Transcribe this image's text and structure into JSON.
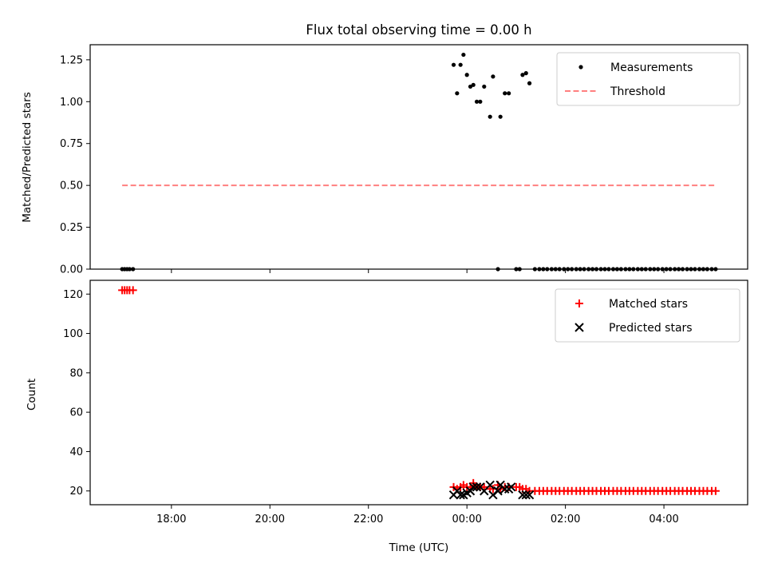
{
  "title": "Flux total observing time = 0.00 h",
  "xlabel": "Time (UTC)",
  "top_ylabel": "Matched/Predicted stars",
  "bottom_ylabel": "Count",
  "chart_data": [
    {
      "type": "scatter",
      "title": "Flux total observing time = 0.00 h",
      "xlabel": "",
      "ylabel": "Matched/Predicted stars",
      "x_unit": "hours (UTC), values >24 are after midnight",
      "xlim": [
        16.35,
        29.7
      ],
      "ylim": [
        0,
        1.34
      ],
      "xticks": [
        18,
        20,
        22,
        24,
        26,
        28
      ],
      "xtick_labels": [
        "18:00",
        "20:00",
        "22:00",
        "00:00",
        "02:00",
        "04:00"
      ],
      "yticks": [
        0,
        0.25,
        0.5,
        0.75,
        1.0,
        1.25
      ],
      "ytick_labels": [
        "0.00",
        "0.25",
        "0.50",
        "0.75",
        "1.00",
        "1.25"
      ],
      "legend_position": "top-right",
      "series": [
        {
          "name": "Measurements",
          "color": "#000000",
          "marker": "dot",
          "points": [
            [
              17.0,
              0
            ],
            [
              17.05,
              0
            ],
            [
              17.1,
              0
            ],
            [
              17.15,
              0
            ],
            [
              17.22,
              0
            ],
            [
              23.73,
              1.22
            ],
            [
              23.8,
              1.05
            ],
            [
              23.87,
              1.22
            ],
            [
              23.93,
              1.28
            ],
            [
              24.0,
              1.16
            ],
            [
              24.07,
              1.09
            ],
            [
              24.13,
              1.1
            ],
            [
              24.2,
              1.0
            ],
            [
              24.27,
              1.0
            ],
            [
              24.35,
              1.09
            ],
            [
              24.47,
              0.91
            ],
            [
              24.53,
              1.15
            ],
            [
              24.63,
              0
            ],
            [
              24.68,
              0.91
            ],
            [
              24.77,
              1.05
            ],
            [
              24.85,
              1.05
            ],
            [
              25.0,
              0
            ],
            [
              25.07,
              0
            ],
            [
              25.13,
              1.16
            ],
            [
              25.2,
              1.17
            ],
            [
              25.27,
              1.11
            ],
            [
              25.38,
              0
            ],
            [
              25.47,
              0
            ],
            [
              25.55,
              0
            ],
            [
              25.63,
              0
            ],
            [
              25.72,
              0
            ],
            [
              25.8,
              0
            ],
            [
              25.88,
              0
            ],
            [
              25.97,
              0
            ],
            [
              26.05,
              0
            ],
            [
              26.13,
              0
            ],
            [
              26.22,
              0
            ],
            [
              26.3,
              0
            ],
            [
              26.38,
              0
            ],
            [
              26.47,
              0
            ],
            [
              26.55,
              0
            ],
            [
              26.63,
              0
            ],
            [
              26.72,
              0
            ],
            [
              26.8,
              0
            ],
            [
              26.88,
              0
            ],
            [
              26.97,
              0
            ],
            [
              27.05,
              0
            ],
            [
              27.13,
              0
            ],
            [
              27.22,
              0
            ],
            [
              27.3,
              0
            ],
            [
              27.38,
              0
            ],
            [
              27.47,
              0
            ],
            [
              27.55,
              0
            ],
            [
              27.63,
              0
            ],
            [
              27.72,
              0
            ],
            [
              27.8,
              0
            ],
            [
              27.88,
              0
            ],
            [
              27.97,
              0
            ],
            [
              28.05,
              0
            ],
            [
              28.13,
              0
            ],
            [
              28.22,
              0
            ],
            [
              28.3,
              0
            ],
            [
              28.38,
              0
            ],
            [
              28.47,
              0
            ],
            [
              28.55,
              0
            ],
            [
              28.63,
              0
            ],
            [
              28.72,
              0
            ],
            [
              28.8,
              0
            ],
            [
              28.88,
              0
            ],
            [
              28.97,
              0
            ],
            [
              29.05,
              0
            ]
          ]
        },
        {
          "name": "Threshold",
          "color": "#ff7f7f",
          "style": "dashed",
          "points": [
            [
              17.0,
              0.5
            ],
            [
              29.05,
              0.5
            ]
          ]
        }
      ]
    },
    {
      "type": "scatter",
      "title": "",
      "xlabel": "Time (UTC)",
      "ylabel": "Count",
      "x_unit": "hours (UTC), values >24 are after midnight",
      "xlim": [
        16.35,
        29.7
      ],
      "ylim": [
        13,
        127
      ],
      "xticks": [
        18,
        20,
        22,
        24,
        26,
        28
      ],
      "xtick_labels": [
        "18:00",
        "20:00",
        "22:00",
        "00:00",
        "02:00",
        "04:00"
      ],
      "yticks": [
        20,
        40,
        60,
        80,
        100,
        120
      ],
      "ytick_labels": [
        "20",
        "40",
        "60",
        "80",
        "100",
        "120"
      ],
      "legend_position": "top-right",
      "series": [
        {
          "name": "Matched stars",
          "color": "#ff0000",
          "marker": "plus",
          "points": [
            [
              17.0,
              122
            ],
            [
              17.05,
              122
            ],
            [
              17.1,
              122
            ],
            [
              17.15,
              122
            ],
            [
              17.22,
              122
            ],
            [
              23.73,
              22
            ],
            [
              23.8,
              21
            ],
            [
              23.87,
              22
            ],
            [
              23.93,
              23
            ],
            [
              24.0,
              22
            ],
            [
              24.07,
              22
            ],
            [
              24.13,
              24
            ],
            [
              24.2,
              22
            ],
            [
              24.27,
              22
            ],
            [
              24.35,
              22
            ],
            [
              24.47,
              21
            ],
            [
              24.53,
              21
            ],
            [
              24.63,
              23
            ],
            [
              24.68,
              21
            ],
            [
              24.77,
              22
            ],
            [
              24.85,
              22
            ],
            [
              25.0,
              22
            ],
            [
              25.07,
              22
            ],
            [
              25.13,
              21
            ],
            [
              25.2,
              21
            ],
            [
              25.27,
              20
            ],
            [
              25.38,
              20
            ],
            [
              25.47,
              20
            ],
            [
              25.55,
              20
            ],
            [
              25.63,
              20
            ],
            [
              25.72,
              20
            ],
            [
              25.8,
              20
            ],
            [
              25.88,
              20
            ],
            [
              25.97,
              20
            ],
            [
              26.05,
              20
            ],
            [
              26.13,
              20
            ],
            [
              26.22,
              20
            ],
            [
              26.3,
              20
            ],
            [
              26.38,
              20
            ],
            [
              26.47,
              20
            ],
            [
              26.55,
              20
            ],
            [
              26.63,
              20
            ],
            [
              26.72,
              20
            ],
            [
              26.8,
              20
            ],
            [
              26.88,
              20
            ],
            [
              26.97,
              20
            ],
            [
              27.05,
              20
            ],
            [
              27.13,
              20
            ],
            [
              27.22,
              20
            ],
            [
              27.3,
              20
            ],
            [
              27.38,
              20
            ],
            [
              27.47,
              20
            ],
            [
              27.55,
              20
            ],
            [
              27.63,
              20
            ],
            [
              27.72,
              20
            ],
            [
              27.8,
              20
            ],
            [
              27.88,
              20
            ],
            [
              27.97,
              20
            ],
            [
              28.05,
              20
            ],
            [
              28.13,
              20
            ],
            [
              28.22,
              20
            ],
            [
              28.3,
              20
            ],
            [
              28.38,
              20
            ],
            [
              28.47,
              20
            ],
            [
              28.55,
              20
            ],
            [
              28.63,
              20
            ],
            [
              28.72,
              20
            ],
            [
              28.8,
              20
            ],
            [
              28.88,
              20
            ],
            [
              28.97,
              20
            ],
            [
              29.05,
              20
            ]
          ]
        },
        {
          "name": "Predicted stars",
          "color": "#000000",
          "marker": "x",
          "points": [
            [
              23.73,
              18
            ],
            [
              23.8,
              20
            ],
            [
              23.87,
              18
            ],
            [
              23.93,
              18
            ],
            [
              24.0,
              19
            ],
            [
              24.07,
              20
            ],
            [
              24.13,
              22
            ],
            [
              24.2,
              22
            ],
            [
              24.27,
              22
            ],
            [
              24.35,
              20
            ],
            [
              24.47,
              23
            ],
            [
              24.53,
              18
            ],
            [
              24.63,
              20
            ],
            [
              24.68,
              23
            ],
            [
              24.77,
              21
            ],
            [
              24.85,
              21
            ],
            [
              24.9,
              22
            ],
            [
              25.13,
              18
            ],
            [
              25.2,
              18
            ],
            [
              25.27,
              18
            ]
          ]
        }
      ]
    }
  ]
}
